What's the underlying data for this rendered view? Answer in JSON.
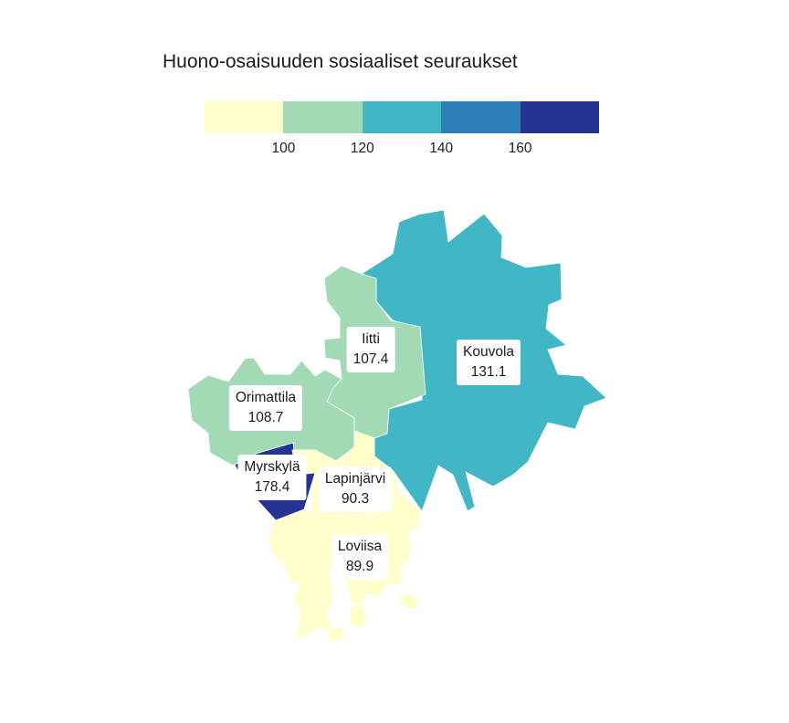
{
  "title": "Huono-osaisuuden sosiaaliset seuraukset",
  "legend": {
    "colors": [
      "#ffffcc",
      "#a1dab4",
      "#41b6c4",
      "#2c7fb8",
      "#253494"
    ],
    "ticks": [
      "100",
      "120",
      "140",
      "160"
    ]
  },
  "chart_data": {
    "type": "choropleth",
    "title": "Huono-osaisuuden sosiaaliset seuraukset",
    "bins": [
      100,
      120,
      140,
      160
    ],
    "regions": [
      {
        "name": "Kouvola",
        "value": 131.1,
        "value_label": "131.1",
        "color": "#41b6c4"
      },
      {
        "name": "Iitti",
        "value": 107.4,
        "value_label": "107.4",
        "color": "#a1dab4"
      },
      {
        "name": "Orimattila",
        "value": 108.7,
        "value_label": "108.7",
        "color": "#a1dab4"
      },
      {
        "name": "Myrskylä",
        "value": 178.4,
        "value_label": "178.4",
        "color": "#253494"
      },
      {
        "name": "Lapinjärvi",
        "value": 90.3,
        "value_label": "90.3",
        "color": "#ffffcc"
      },
      {
        "name": "Loviisa",
        "value": 89.9,
        "value_label": "89.9",
        "color": "#ffffcc"
      }
    ]
  }
}
